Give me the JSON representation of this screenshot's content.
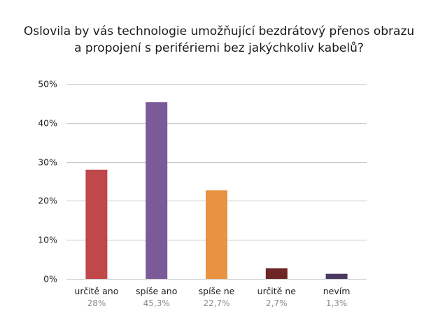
{
  "chart_data": {
    "type": "bar",
    "title_lines": [
      "Oslovila by vás technologie umožňující bezdrátový přenos obrazu",
      "a propojení s perifériemi bez jakýchkoliv kabelů?"
    ],
    "categories": [
      "určitě ano",
      "spíše ano",
      "spíše ne",
      "určitě ne",
      "nevím"
    ],
    "values": [
      28,
      45.3,
      22.7,
      2.7,
      1.3
    ],
    "value_labels": [
      "28%",
      "45,3%",
      "22,7%",
      "2,7%",
      "1,3%"
    ],
    "bar_colors": [
      "#c0474a",
      "#7b5a9a",
      "#e89242",
      "#6e2525",
      "#4a3a62"
    ],
    "ylim": [
      0,
      50
    ],
    "yticks": [
      0,
      10,
      20,
      30,
      40,
      50
    ],
    "ytick_labels": [
      "0%",
      "10%",
      "20%",
      "30%",
      "40%",
      "50%"
    ],
    "xlabel": "",
    "ylabel": "",
    "grid": true,
    "grid_color": "#c8c8c8"
  }
}
